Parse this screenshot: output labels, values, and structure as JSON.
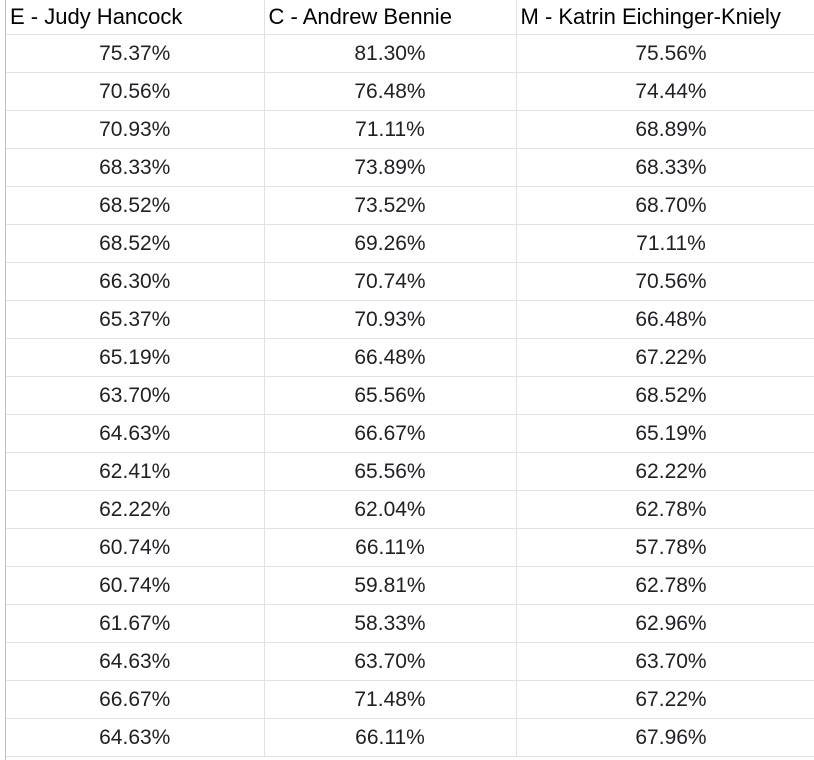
{
  "headers": [
    "E - Judy Hancock",
    "C - Andrew Bennie",
    "M - Katrin Eichinger-Kniely"
  ],
  "rows": [
    [
      "75.37%",
      "81.30%",
      "75.56%"
    ],
    [
      "70.56%",
      "76.48%",
      "74.44%"
    ],
    [
      "70.93%",
      "71.11%",
      "68.89%"
    ],
    [
      "68.33%",
      "73.89%",
      "68.33%"
    ],
    [
      "68.52%",
      "73.52%",
      "68.70%"
    ],
    [
      "68.52%",
      "69.26%",
      "71.11%"
    ],
    [
      "66.30%",
      "70.74%",
      "70.56%"
    ],
    [
      "65.37%",
      "70.93%",
      "66.48%"
    ],
    [
      "65.19%",
      "66.48%",
      "67.22%"
    ],
    [
      "63.70%",
      "65.56%",
      "68.52%"
    ],
    [
      "64.63%",
      "66.67%",
      "65.19%"
    ],
    [
      "62.41%",
      "65.56%",
      "62.22%"
    ],
    [
      "62.22%",
      "62.04%",
      "62.78%"
    ],
    [
      "60.74%",
      "66.11%",
      "57.78%"
    ],
    [
      "60.74%",
      "59.81%",
      "62.78%"
    ],
    [
      "61.67%",
      "58.33%",
      "62.96%"
    ],
    [
      "64.63%",
      "63.70%",
      "63.70%"
    ],
    [
      "66.67%",
      "71.48%",
      "67.22%"
    ],
    [
      "64.63%",
      "66.11%",
      "67.96%"
    ]
  ]
}
